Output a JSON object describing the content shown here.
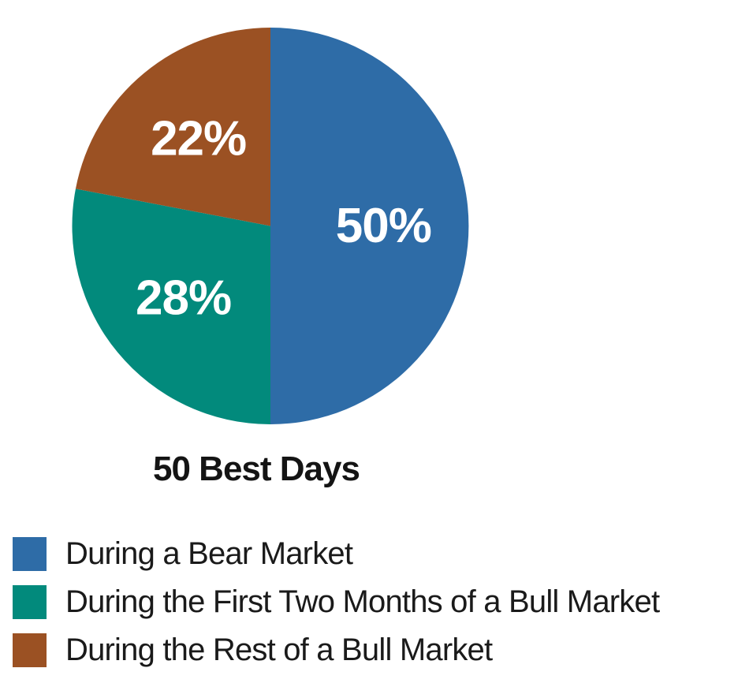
{
  "chart_data": {
    "type": "pie",
    "title": "50 Best Days",
    "start_angle_deg": -90,
    "direction": "clockwise",
    "legend_position": "bottom-left",
    "background_color": "#FFFFFF",
    "slice_label_color": "#FFFFFF",
    "text_color": "#1A1A1A",
    "total": 100,
    "slices": [
      {
        "label": "During a Bear Market",
        "value": 50,
        "display": "50%",
        "color": "#2E6CA7"
      },
      {
        "label": "During the First Two Months of a Bull Market",
        "value": 28,
        "display": "28%",
        "color": "#028A7C"
      },
      {
        "label": "During the Rest of a Bull Market",
        "value": 22,
        "display": "22%",
        "color": "#9B5123"
      }
    ]
  }
}
